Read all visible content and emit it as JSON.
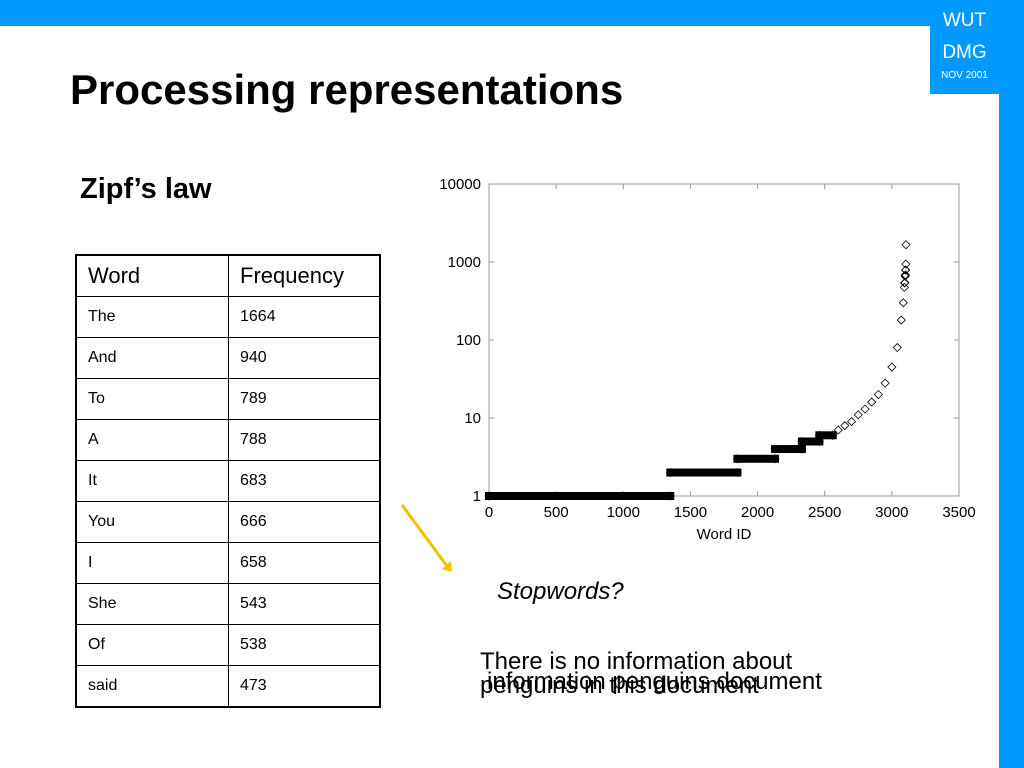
{
  "slide": {
    "title": "Processing representations",
    "subtitle": "Zipf’s law",
    "logo": {
      "line1": "WUT",
      "line2": "DMG",
      "line3": "NOV 2001"
    },
    "stopwords_label": "Stopwords?",
    "note_text": "There is no information about penguins in this document",
    "note_overlay_text": "information penguins document",
    "colors": {
      "accent": "#0099ff",
      "arrow": "#f5c000"
    }
  },
  "table": {
    "headers": [
      "Word",
      "Frequency"
    ],
    "rows": [
      [
        "The",
        "1664"
      ],
      [
        "And",
        "940"
      ],
      [
        "To",
        "789"
      ],
      [
        "A",
        "788"
      ],
      [
        "It",
        "683"
      ],
      [
        "You",
        "666"
      ],
      [
        "I",
        "658"
      ],
      [
        "She",
        "543"
      ],
      [
        "Of",
        "538"
      ],
      [
        "said",
        "473"
      ]
    ]
  },
  "chart_data": {
    "type": "scatter",
    "xlabel": "Word ID",
    "ylabel": "",
    "title": "",
    "xlim": [
      0,
      3500
    ],
    "ylim": [
      1,
      10000
    ],
    "y_scale": "log",
    "grid": false,
    "marker": "diamond",
    "x_ticks": [
      0,
      500,
      1000,
      1500,
      2000,
      2500,
      3000,
      3500
    ],
    "y_ticks": [
      1,
      10,
      100,
      1000,
      10000
    ],
    "x_tick_labels": [
      "0",
      "500",
      "1000",
      "1500",
      "2000",
      "2500",
      "3000",
      "3500"
    ],
    "y_tick_labels": [
      "1",
      "10",
      "100",
      "1000",
      "10000"
    ],
    "segments": [
      {
        "y": 1,
        "x_start": 0,
        "x_end": 1350
      },
      {
        "y": 2,
        "x_start": 1350,
        "x_end": 1850
      },
      {
        "y": 3,
        "x_start": 1850,
        "x_end": 2130
      },
      {
        "y": 4,
        "x_start": 2130,
        "x_end": 2330
      },
      {
        "y": 5,
        "x_start": 2330,
        "x_end": 2460
      },
      {
        "y": 6,
        "x_start": 2460,
        "x_end": 2560
      }
    ],
    "points": [
      {
        "x": 2600,
        "y": 7
      },
      {
        "x": 2650,
        "y": 8
      },
      {
        "x": 2700,
        "y": 9
      },
      {
        "x": 2750,
        "y": 11
      },
      {
        "x": 2800,
        "y": 13
      },
      {
        "x": 2850,
        "y": 16
      },
      {
        "x": 2900,
        "y": 20
      },
      {
        "x": 2950,
        "y": 28
      },
      {
        "x": 3000,
        "y": 45
      },
      {
        "x": 3040,
        "y": 80
      },
      {
        "x": 3070,
        "y": 180
      },
      {
        "x": 3085,
        "y": 300
      },
      {
        "x": 3093,
        "y": 473
      },
      {
        "x": 3095,
        "y": 538
      },
      {
        "x": 3097,
        "y": 543
      },
      {
        "x": 3099,
        "y": 658
      },
      {
        "x": 3100,
        "y": 666
      },
      {
        "x": 3101,
        "y": 683
      },
      {
        "x": 3102,
        "y": 788
      },
      {
        "x": 3103,
        "y": 789
      },
      {
        "x": 3104,
        "y": 940
      },
      {
        "x": 3105,
        "y": 1664
      }
    ]
  }
}
